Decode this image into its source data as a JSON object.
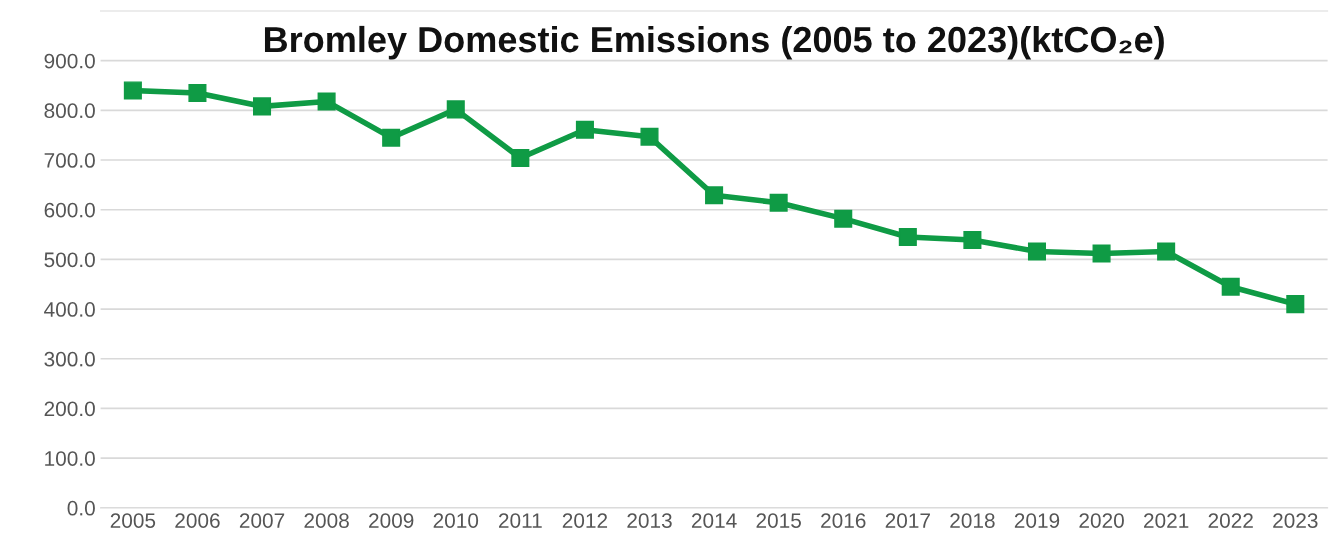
{
  "chart_data": {
    "type": "line",
    "title": "Bromley Domestic Emissions (2005 to 2023)(ktCO₂e)",
    "categories": [
      "2005",
      "2006",
      "2007",
      "2008",
      "2009",
      "2010",
      "2011",
      "2012",
      "2013",
      "2014",
      "2015",
      "2016",
      "2017",
      "2018",
      "2019",
      "2020",
      "2021",
      "2022",
      "2023"
    ],
    "series": [
      {
        "color": "#0f9b45",
        "values": [
          840,
          835,
          808,
          818,
          745,
          802,
          704,
          761,
          747,
          629,
          614,
          582,
          545,
          539,
          516,
          512,
          516,
          445,
          410
        ]
      }
    ],
    "ylim": [
      0,
      1000
    ],
    "yticks": [
      {
        "value": 0,
        "label": "0.0"
      },
      {
        "value": 100,
        "label": "100.0"
      },
      {
        "value": 200,
        "label": "200.0"
      },
      {
        "value": 300,
        "label": "300.0"
      },
      {
        "value": 400,
        "label": "400.0"
      },
      {
        "value": 500,
        "label": "500.0"
      },
      {
        "value": 600,
        "label": "600.0"
      },
      {
        "value": 700,
        "label": "700.0"
      },
      {
        "value": 800,
        "label": "800.0"
      },
      {
        "value": 900,
        "label": "900.0"
      }
    ],
    "grid": "y",
    "marker": "square",
    "line_style": "solid",
    "legend": false
  }
}
